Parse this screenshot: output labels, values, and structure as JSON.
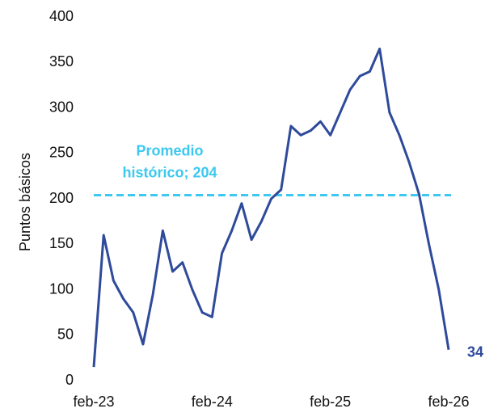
{
  "chart_data": {
    "type": "line",
    "y_label": "Puntos básicos",
    "x": [
      "2023-02",
      "2023-03",
      "2023-04",
      "2023-05",
      "2023-06",
      "2023-07",
      "2023-08",
      "2023-09",
      "2023-10",
      "2023-11",
      "2023-12",
      "2024-01",
      "2024-02",
      "2024-03",
      "2024-04",
      "2024-05",
      "2024-06",
      "2024-07",
      "2024-08",
      "2024-09",
      "2024-10",
      "2024-11",
      "2024-12",
      "2025-01",
      "2025-02",
      "2025-03",
      "2025-04",
      "2025-05",
      "2025-06",
      "2025-07",
      "2025-08",
      "2025-09",
      "2025-10",
      "2025-11",
      "2025-12",
      "2026-01",
      "2026-02"
    ],
    "series": [
      {
        "color": "#2e4a9a",
        "values": [
          15,
          160,
          110,
          90,
          75,
          40,
          95,
          165,
          120,
          130,
          100,
          75,
          70,
          140,
          165,
          195,
          155,
          175,
          200,
          210,
          280,
          270,
          275,
          285,
          270,
          295,
          320,
          335,
          340,
          365,
          295,
          270,
          240,
          205,
          150,
          100,
          34
        ]
      }
    ],
    "end_label": "34",
    "average": 204,
    "average_color": "#3cc8f0",
    "average_label": [
      "Promedio",
      "histórico; 204"
    ],
    "ylim": [
      0,
      400
    ],
    "yticks": [
      0,
      50,
      100,
      150,
      200,
      250,
      300,
      350,
      400
    ],
    "xticks": [
      {
        "value": "2023-02",
        "label": "feb-23"
      },
      {
        "value": "2024-02",
        "label": "feb-24"
      },
      {
        "value": "2025-02",
        "label": "feb-25"
      },
      {
        "value": "2026-02",
        "label": "feb-26"
      }
    ]
  }
}
